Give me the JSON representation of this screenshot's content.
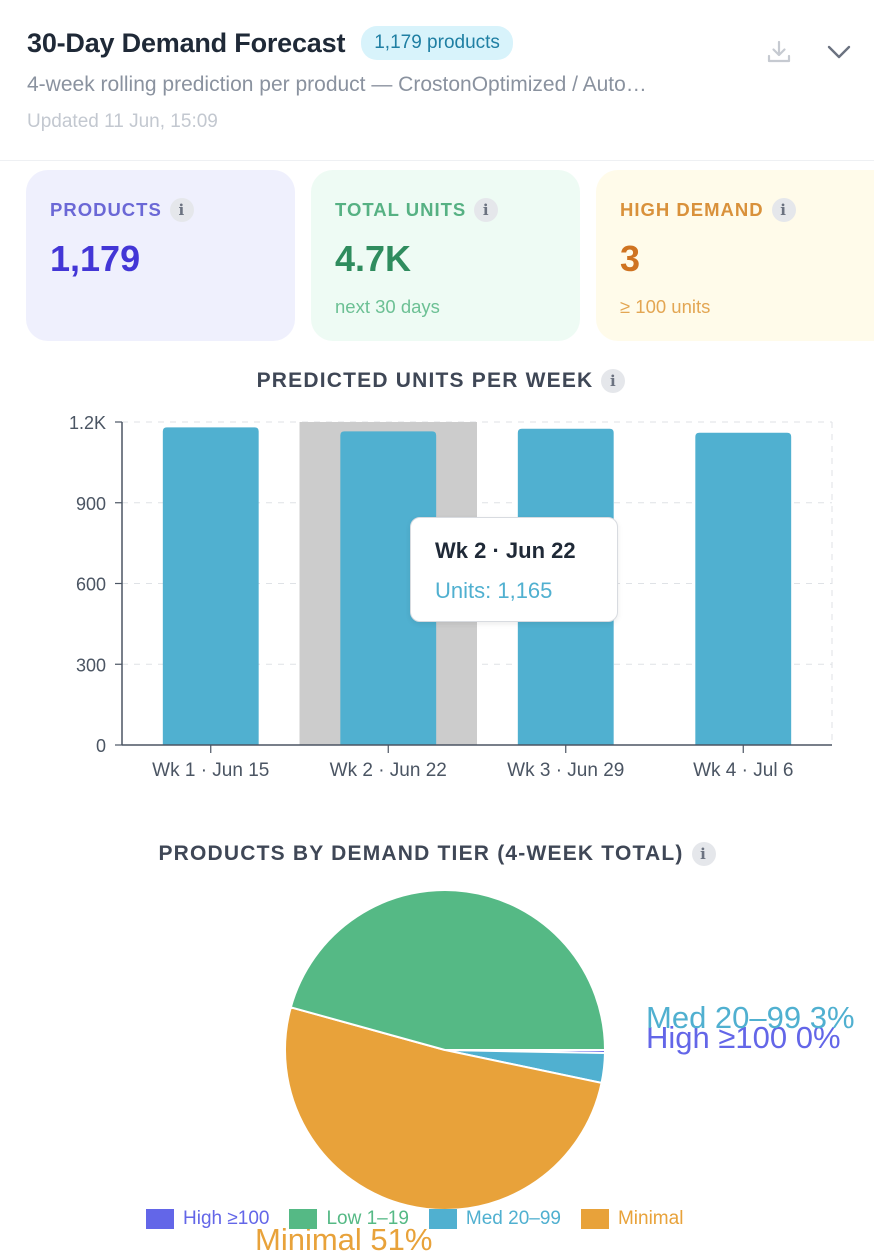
{
  "header": {
    "title": "30-Day Demand Forecast",
    "badge": "1,179 products",
    "subtitle": "4-week rolling prediction per product — CrostonOptimized / Auto…",
    "updated": "Updated 11 Jun, 15:09",
    "icons": [
      "download-icon",
      "chevron-down-icon"
    ]
  },
  "stats": {
    "products": {
      "label": "PRODUCTS",
      "value": "1,179"
    },
    "total_units": {
      "label": "TOTAL UNITS",
      "value": "4.7K",
      "sub": "next 30 days"
    },
    "high_demand": {
      "label": "HIGH DEMAND",
      "value": "3",
      "sub": "≥ 100 units"
    },
    "info_glyph": "i"
  },
  "colors": {
    "bar": "#50b0d0",
    "hover_band": "#cccccc",
    "high": "#6366e8",
    "low": "#55b985",
    "med": "#50b0d0",
    "minimal": "#e8a23a"
  },
  "chart_data": [
    {
      "type": "bar",
      "title": "PREDICTED UNITS PER WEEK",
      "categories": [
        "Wk 1 · Jun 15",
        "Wk 2 · Jun 22",
        "Wk 3 · Jun 29",
        "Wk 4 · Jul 6"
      ],
      "values": [
        1180,
        1165,
        1175,
        1160
      ],
      "yticks": [
        "0",
        "300",
        "600",
        "900",
        "1.2K"
      ],
      "ytick_values": [
        0,
        300,
        600,
        900,
        1200
      ],
      "ylim": [
        0,
        1200
      ],
      "grid": true,
      "highlighted_index": 1,
      "tooltip": {
        "title": "Wk 2 · Jun 22",
        "value": "Units: 1,165"
      }
    },
    {
      "type": "pie",
      "title": "PRODUCTS BY DEMAND TIER (4-WEEK TOTAL)",
      "slices": [
        {
          "name": "High ≥100",
          "value": 0.3,
          "label": "High ≥100 0%",
          "color": "#6366e8"
        },
        {
          "name": "Med 20–99",
          "value": 3,
          "label": "Med 20–99 3%",
          "color": "#50b0d0"
        },
        {
          "name": "Minimal",
          "value": 51,
          "label": "Minimal 51%",
          "color": "#e8a23a"
        },
        {
          "name": "Low 1–19",
          "value": 45.7,
          "label": "",
          "color": "#55b985"
        }
      ],
      "legend": [
        "High ≥100",
        "Low 1–19",
        "Med 20–99",
        "Minimal"
      ],
      "legend_placement": "bottom"
    }
  ]
}
